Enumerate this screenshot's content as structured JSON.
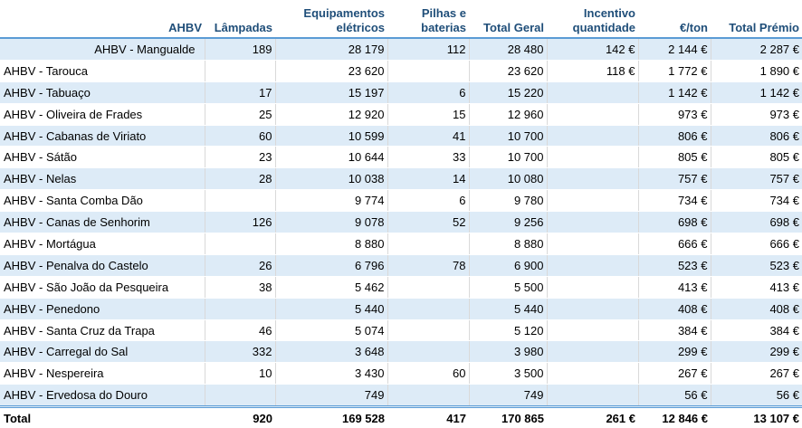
{
  "headers": [
    "AHBV",
    "Lâmpadas",
    "Equipamentos elétricos",
    "Pilhas e baterias",
    "Total Geral",
    "Incentivo quantidade",
    "€/ton",
    "Total Prémio"
  ],
  "rows": [
    [
      "AHBV - Mangualde",
      "189",
      "28 179",
      "112",
      "28 480",
      "142 €",
      "2 144 €",
      "2 287 €"
    ],
    [
      "AHBV - Tarouca",
      "",
      "23 620",
      "",
      "23 620",
      "118 €",
      "1 772 €",
      "1 890 €"
    ],
    [
      "AHBV - Tabuaço",
      "17",
      "15 197",
      "6",
      "15 220",
      "",
      "1 142 €",
      "1 142 €"
    ],
    [
      "AHBV - Oliveira de Frades",
      "25",
      "12 920",
      "15",
      "12 960",
      "",
      "973 €",
      "973 €"
    ],
    [
      "AHBV - Cabanas de Viriato",
      "60",
      "10 599",
      "41",
      "10 700",
      "",
      "806 €",
      "806 €"
    ],
    [
      "AHBV - Sátão",
      "23",
      "10 644",
      "33",
      "10 700",
      "",
      "805 €",
      "805 €"
    ],
    [
      "AHBV - Nelas",
      "28",
      "10 038",
      "14",
      "10 080",
      "",
      "757 €",
      "757 €"
    ],
    [
      "AHBV - Santa Comba Dão",
      "",
      "9 774",
      "6",
      "9 780",
      "",
      "734 €",
      "734 €"
    ],
    [
      "AHBV - Canas de Senhorim",
      "126",
      "9 078",
      "52",
      "9 256",
      "",
      "698 €",
      "698 €"
    ],
    [
      "AHBV - Mortágua",
      "",
      "8 880",
      "",
      "8 880",
      "",
      "666 €",
      "666 €"
    ],
    [
      "AHBV - Penalva do Castelo",
      "26",
      "6 796",
      "78",
      "6 900",
      "",
      "523 €",
      "523 €"
    ],
    [
      "AHBV - São João da Pesqueira",
      "38",
      "5 462",
      "",
      "5 500",
      "",
      "413 €",
      "413 €"
    ],
    [
      "AHBV - Penedono",
      "",
      "5 440",
      "",
      "5 440",
      "",
      "408 €",
      "408 €"
    ],
    [
      "AHBV - Santa Cruz da Trapa",
      "46",
      "5 074",
      "",
      "5 120",
      "",
      "384 €",
      "384 €"
    ],
    [
      "AHBV - Carregal do Sal",
      "332",
      "3 648",
      "",
      "3 980",
      "",
      "299 €",
      "299 €"
    ],
    [
      "AHBV - Nespereira",
      "10",
      "3 430",
      "60",
      "3 500",
      "",
      "267 €",
      "267 €"
    ],
    [
      "AHBV - Ervedosa do Douro",
      "",
      "749",
      "",
      "749",
      "",
      "56 €",
      "56 €"
    ]
  ],
  "total": [
    "Total",
    "920",
    "169 528",
    "417",
    "170 865",
    "261 €",
    "12 846 €",
    "13 107 €"
  ],
  "colors": {
    "header_text": "#1f4e79",
    "band": "#ddebf7",
    "rule": "#5b9bd5"
  }
}
